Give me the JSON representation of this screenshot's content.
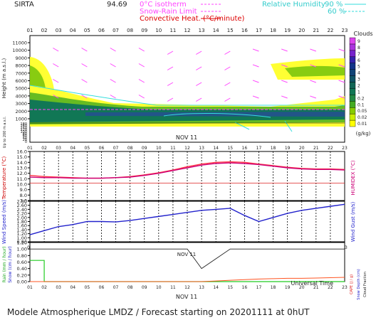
{
  "header": {
    "station": "SIRTA",
    "altitude": "94.69",
    "legend": {
      "isotherm": "0°C isotherm",
      "snow_rain": "Snow-Rain Limit",
      "convective": "Convective Heat. (°C/minute)",
      "rh": "Relative Humidity",
      "rh90": "90 %",
      "rh60": "60 %"
    },
    "colors": {
      "isotherm": "#ff44ff",
      "convective": "#dd0000",
      "rh": "#33dddd"
    }
  },
  "footer": "Modele Atmospherique LMDZ / Forecast starting on 20201111 at 0hUT",
  "x_title": "Universal Time",
  "date_label": "NOV 11",
  "hours": [
    "01",
    "02",
    "03",
    "04",
    "05",
    "06",
    "07",
    "08",
    "09",
    "10",
    "11",
    "12",
    "13",
    "14",
    "15",
    "16",
    "17",
    "18",
    "19",
    "20",
    "21",
    "22",
    "23"
  ],
  "chart_data": [
    {
      "type": "heatmap",
      "panel": "clouds",
      "ylabel": "Height (m a.s.l.)",
      "y_ticks_upper": [
        1000,
        2000,
        3000,
        4000,
        5000,
        6000,
        7000,
        8000,
        9000,
        10000,
        11000
      ],
      "ylabel_lower": "Up to 200 m a.s.l.",
      "y_ticks_lower": [
        0,
        20,
        40,
        60,
        80,
        100,
        120,
        140,
        160,
        180
      ],
      "colorbar": {
        "title": "Clouds",
        "unit": "(g/kg)",
        "ticks": [
          "0.01",
          "0.02",
          "0.05",
          "0.1",
          "0.2",
          "1",
          "2",
          "3",
          "4",
          "5",
          "6",
          "7",
          "8",
          "9"
        ],
        "colors": [
          "#ffff00",
          "#ccee00",
          "#88cc00",
          "#44aa22",
          "#228844",
          "#117755",
          "#116655",
          "#115566",
          "#114477",
          "#113388",
          "#3322aa",
          "#7722cc",
          "#aa33dd",
          "#dd44ee"
        ]
      }
    },
    {
      "type": "line",
      "panel": "temperature",
      "ylabel": "Temperature (°C)",
      "ylabel_right": "HUMIDEX (°C)",
      "y_ticks": [
        7.0,
        8.0,
        9.0,
        10.0,
        11.0,
        12.0,
        13.0,
        14.0,
        15.0,
        16.0
      ],
      "ylim": [
        7.0,
        16.0
      ],
      "series": [
        {
          "values": [
            11.6,
            11.4,
            11.3,
            11.2,
            11.1,
            11.1,
            11.2,
            11.4,
            11.7,
            12.1,
            12.6,
            13.2,
            13.7,
            14.0,
            14.1,
            14.0,
            13.7,
            13.4,
            13.1,
            12.9,
            12.8,
            12.8,
            12.7
          ],
          "color": "#ff3344"
        },
        {
          "values": [
            11.3,
            11.2,
            11.2,
            11.1,
            11.1,
            11.1,
            11.2,
            11.3,
            11.6,
            12.0,
            12.5,
            13.0,
            13.5,
            13.8,
            13.9,
            13.8,
            13.6,
            13.3,
            13.0,
            12.8,
            12.7,
            12.7,
            12.6
          ],
          "color": "#cc0077"
        }
      ]
    },
    {
      "type": "line",
      "panel": "wind",
      "ylabel": "Wind Speed (m/s)",
      "ylabel_right": "Wind Gust (m/s)",
      "y_ticks": [
        "0.80",
        "1.00",
        "1.20",
        "1.40",
        "1.60",
        "1.80",
        "2.00",
        "2.20",
        "2.40",
        "2.60",
        "2.80"
      ],
      "ylim": [
        0.8,
        2.8
      ],
      "series": [
        {
          "values": [
            1.15,
            1.35,
            1.55,
            1.65,
            1.8,
            1.8,
            1.78,
            1.85,
            1.95,
            2.05,
            2.15,
            2.25,
            2.35,
            2.4,
            2.45,
            2.1,
            1.8,
            2.0,
            2.2,
            2.35,
            2.45,
            2.55,
            2.65
          ],
          "color": "#2222cc"
        }
      ]
    },
    {
      "type": "line",
      "panel": "precip",
      "ylabel": "Rain (mm / hour)",
      "ylabel2": "Snow (cm / hour)",
      "ylabel_right": "CAPE (J / g)",
      "ylabel_right2": "Snow Depth (cm)",
      "ylabel_right3": "Cloud Fraction",
      "y_ticks": [
        "0.00",
        "0.20",
        "0.40",
        "0.60",
        "0.80",
        "1.00",
        "1.20"
      ],
      "ylim": [
        0,
        1.2
      ],
      "series": [
        {
          "name": "Rain",
          "values": [
            0.65,
            0,
            0,
            0,
            0,
            0,
            0,
            0,
            0,
            0,
            0,
            0,
            0,
            0,
            0,
            0,
            0,
            0,
            0,
            0,
            0,
            0,
            0
          ],
          "color": "#22cc22"
        },
        {
          "name": "Cloud Fraction",
          "values": [
            1.0,
            1.0,
            1.0,
            1.0,
            1.0,
            1.0,
            1.0,
            1.0,
            1.0,
            1.0,
            1.0,
            1.0,
            0.4,
            0.7,
            1.0,
            1.0,
            1.0,
            1.0,
            1.0,
            1.0,
            1.0,
            1.0,
            1.0
          ],
          "color": "#222222"
        },
        {
          "name": "CAPE",
          "values": [
            0,
            0,
            0,
            0,
            0,
            0,
            0,
            0,
            0,
            0,
            0,
            0,
            0,
            0.02,
            0.04,
            0.06,
            0.08,
            0.09,
            0.1,
            0.1,
            0.11,
            0.12,
            0.13
          ],
          "color": "#ff5522"
        }
      ]
    }
  ]
}
